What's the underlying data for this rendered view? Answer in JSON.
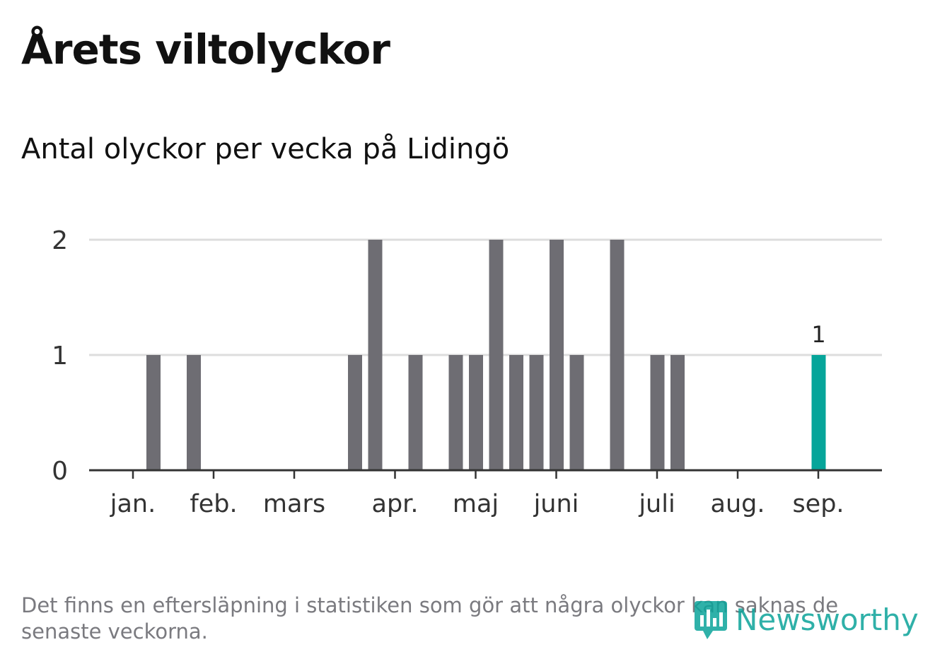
{
  "header": {
    "title": "Årets viltolyckor",
    "subtitle": "Antal olyckor per vecka på Lidingö"
  },
  "footer": {
    "note": "Det finns en eftersläpning i statistiken som gör att några olyckor kan saknas de senaste veckorna.",
    "brand": "Newsworthy",
    "brand_icon": "bar-chart-speech-bubble-icon"
  },
  "colors": {
    "bar": "#6e6d73",
    "highlight": "#06a59a",
    "grid": "#dddddd",
    "axis": "#333333",
    "brand": "#0ba39a"
  },
  "chart_data": {
    "type": "bar",
    "title": "Antal olyckor per vecka på Lidingö",
    "xlabel": "",
    "ylabel": "",
    "ylim": [
      0,
      2
    ],
    "yticks": [
      0,
      1,
      2
    ],
    "grid": true,
    "x_tick_labels": [
      "jan.",
      "feb.",
      "mars",
      "apr.",
      "maj",
      "juni",
      "juli",
      "aug.",
      "sep."
    ],
    "month_start_weeks": [
      1,
      5,
      9,
      14,
      18,
      22,
      27,
      31,
      35
    ],
    "categories": [
      "v1",
      "v2",
      "v3",
      "v4",
      "v5",
      "v6",
      "v7",
      "v8",
      "v9",
      "v10",
      "v11",
      "v12",
      "v13",
      "v14",
      "v15",
      "v16",
      "v17",
      "v18",
      "v19",
      "v20",
      "v21",
      "v22",
      "v23",
      "v24",
      "v25",
      "v26",
      "v27",
      "v28",
      "v29",
      "v30",
      "v31",
      "v32",
      "v33",
      "v34",
      "v35",
      "v36",
      "v37"
    ],
    "values": [
      0,
      0,
      1,
      0,
      1,
      0,
      0,
      0,
      0,
      0,
      0,
      0,
      1,
      2,
      0,
      1,
      0,
      1,
      1,
      2,
      1,
      1,
      2,
      1,
      0,
      2,
      0,
      1,
      1,
      0,
      0,
      0,
      0,
      0,
      0,
      1,
      0
    ],
    "highlight_index": 35,
    "highlight_label": "1"
  }
}
